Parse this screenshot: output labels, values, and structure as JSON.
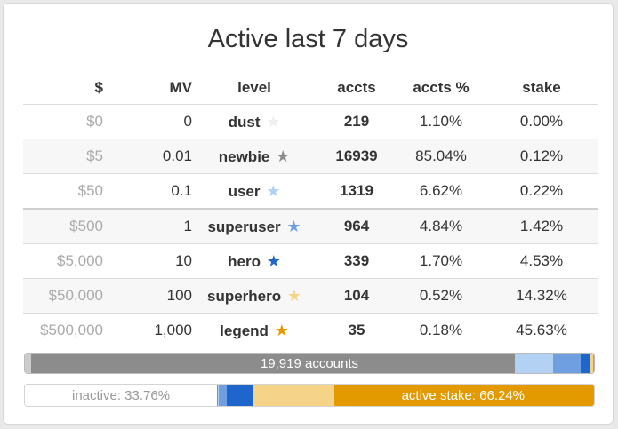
{
  "title": "Active last 7 days",
  "headers": [
    "$",
    "MV",
    "level",
    "accts",
    "accts %",
    "stake"
  ],
  "rows": [
    {
      "usd": "$0",
      "mv": "0",
      "level": "dust",
      "star_color": "#eeeeee",
      "accts": "219",
      "accts_pct": "1.10%",
      "stake": "0.00%"
    },
    {
      "usd": "$5",
      "mv": "0.01",
      "level": "newbie",
      "star_color": "#8c8c8c",
      "accts": "16939",
      "accts_pct": "85.04%",
      "stake": "0.12%"
    },
    {
      "usd": "$50",
      "mv": "0.1",
      "level": "user",
      "star_color": "#b3d1f3",
      "accts": "1319",
      "accts_pct": "6.62%",
      "stake": "0.22%"
    },
    {
      "usd": "$500",
      "mv": "1",
      "level": "superuser",
      "star_color": "#6f9fe0",
      "accts": "964",
      "accts_pct": "4.84%",
      "stake": "1.42%"
    },
    {
      "usd": "$5,000",
      "mv": "10",
      "level": "hero",
      "star_color": "#1f66cc",
      "accts": "339",
      "accts_pct": "1.70%",
      "stake": "4.53%"
    },
    {
      "usd": "$50,000",
      "mv": "100",
      "level": "superhero",
      "star_color": "#f5d48a",
      "accts": "104",
      "accts_pct": "0.52%",
      "stake": "14.32%"
    },
    {
      "usd": "$500,000",
      "mv": "1,000",
      "level": "legend",
      "star_color": "#e29a00",
      "accts": "35",
      "accts_pct": "0.18%",
      "stake": "45.63%"
    }
  ],
  "star_icon": "star-icon",
  "accounts_bar": {
    "label": "19,919 accounts",
    "segments_pct": [
      1.1,
      85.04,
      6.62,
      4.84,
      1.7,
      0.52,
      0.18
    ]
  },
  "stake_bar": {
    "inactive_label": "inactive: 33.76%",
    "active_label": "active stake: 66.24%",
    "inactive_pct": 33.76,
    "segments_pct": [
      0.0,
      0.12,
      0.22,
      1.42,
      4.53,
      14.32,
      45.63
    ]
  }
}
